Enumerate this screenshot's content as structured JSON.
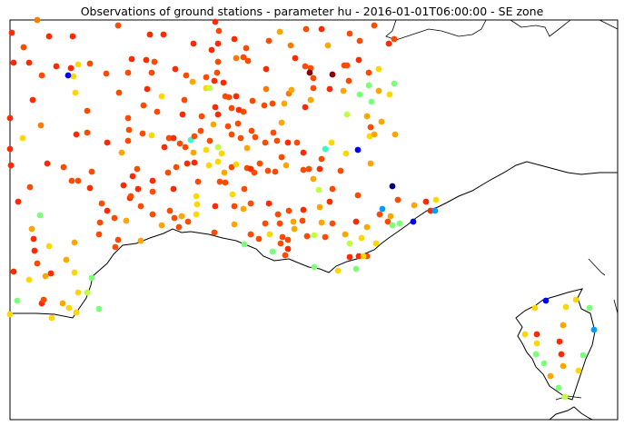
{
  "title": "Observations of ground stations - parameter hu - 2016-01-01T06:00:00 - SE zone",
  "map": {
    "region": "SE zone",
    "parameter": "hu",
    "colormap": "jet",
    "background_color": "#ffffff",
    "coastline_color": "#000000",
    "land_areas": [
      "southeastern France mainland",
      "Corsica",
      "northern Italy (edge)"
    ],
    "sea_areas": [
      "Mediterranean Sea"
    ]
  },
  "station_color_classes": {
    "dark-red": "#8b0000",
    "red": "#ff2a00",
    "orange-red": "#ff4a00",
    "orange": "#ff7a00",
    "amber": "#ffa500",
    "yellow": "#ffd700",
    "yellow-green": "#bfff3f",
    "light-green": "#7cff79",
    "cyan": "#32ffc4",
    "sky-blue": "#009dff",
    "blue": "#0000ff",
    "navy": "#00007f"
  }
}
